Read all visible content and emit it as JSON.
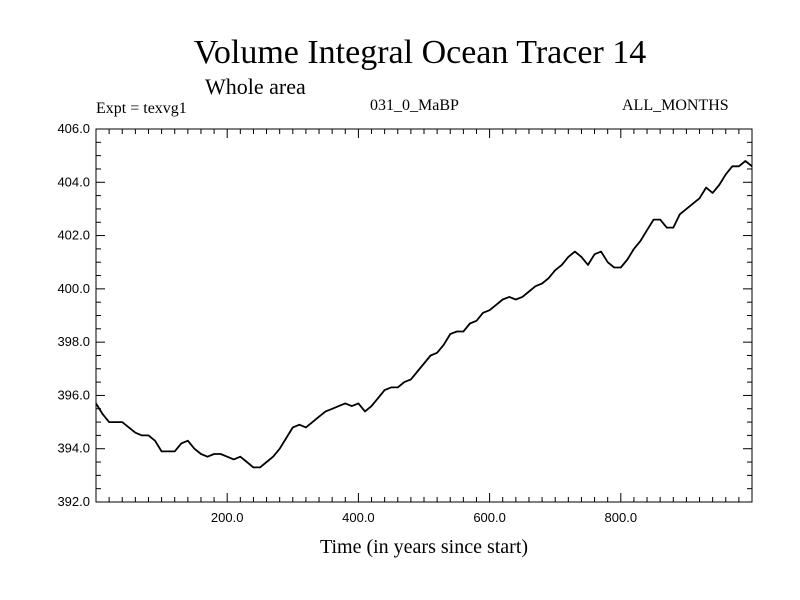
{
  "chart_data": {
    "type": "line",
    "title": "Volume Integral Ocean Tracer 14",
    "subtitle": "Whole area",
    "annotations": {
      "experiment": "Expt = texvg1",
      "period": "031_0_MaBP",
      "months": "ALL_MONTHS"
    },
    "xlabel": "Time (in years since start)",
    "ylabel": "",
    "xlim": [
      0,
      1000
    ],
    "ylim": [
      392.0,
      406.0
    ],
    "xticks": [
      200,
      400,
      600,
      800
    ],
    "xtick_labels": [
      "200.0",
      "400.0",
      "600.0",
      "800.0"
    ],
    "yticks": [
      392,
      394,
      396,
      398,
      400,
      402,
      404,
      406
    ],
    "ytick_labels": [
      "392.0",
      "394.0",
      "396.0",
      "398.0",
      "400.0",
      "402.0",
      "404.0",
      "406.0"
    ],
    "grid": false,
    "series": [
      {
        "name": "Ocean Tracer 14",
        "x": [
          0,
          10,
          20,
          30,
          40,
          50,
          60,
          70,
          80,
          90,
          100,
          110,
          120,
          130,
          140,
          150,
          160,
          170,
          180,
          190,
          200,
          210,
          220,
          230,
          240,
          250,
          260,
          270,
          280,
          290,
          300,
          310,
          320,
          330,
          340,
          350,
          360,
          370,
          380,
          390,
          400,
          410,
          420,
          430,
          440,
          450,
          460,
          470,
          480,
          490,
          500,
          510,
          520,
          530,
          540,
          550,
          560,
          570,
          580,
          590,
          600,
          610,
          620,
          630,
          640,
          650,
          660,
          670,
          680,
          690,
          700,
          710,
          720,
          730,
          740,
          750,
          760,
          770,
          780,
          790,
          800,
          810,
          820,
          830,
          840,
          850,
          860,
          870,
          880,
          890,
          900,
          910,
          920,
          930,
          940,
          950,
          960,
          970,
          980,
          990,
          1000
        ],
        "y": [
          395.7,
          395.3,
          395.0,
          395.0,
          395.0,
          394.8,
          394.6,
          394.5,
          394.5,
          394.3,
          393.9,
          393.9,
          393.9,
          394.2,
          394.3,
          394.0,
          393.8,
          393.7,
          393.8,
          393.8,
          393.7,
          393.6,
          393.7,
          393.5,
          393.3,
          393.3,
          393.5,
          393.7,
          394.0,
          394.4,
          394.8,
          394.9,
          394.8,
          395.0,
          395.2,
          395.4,
          395.5,
          395.6,
          395.7,
          395.6,
          395.7,
          395.4,
          395.6,
          395.9,
          396.2,
          396.3,
          396.3,
          396.5,
          396.6,
          396.9,
          397.2,
          397.5,
          397.6,
          397.9,
          398.3,
          398.4,
          398.4,
          398.7,
          398.8,
          399.1,
          399.2,
          399.4,
          399.6,
          399.7,
          399.6,
          399.7,
          399.9,
          400.1,
          400.2,
          400.4,
          400.7,
          400.9,
          401.2,
          401.4,
          401.2,
          400.9,
          401.3,
          401.4,
          401.0,
          400.8,
          400.8,
          401.1,
          401.5,
          401.8,
          402.2,
          402.6,
          402.6,
          402.3,
          402.3,
          402.8,
          403.0,
          403.2,
          403.4,
          403.8,
          403.6,
          403.9,
          404.3,
          404.6,
          404.6,
          404.8,
          404.6
        ]
      }
    ]
  }
}
